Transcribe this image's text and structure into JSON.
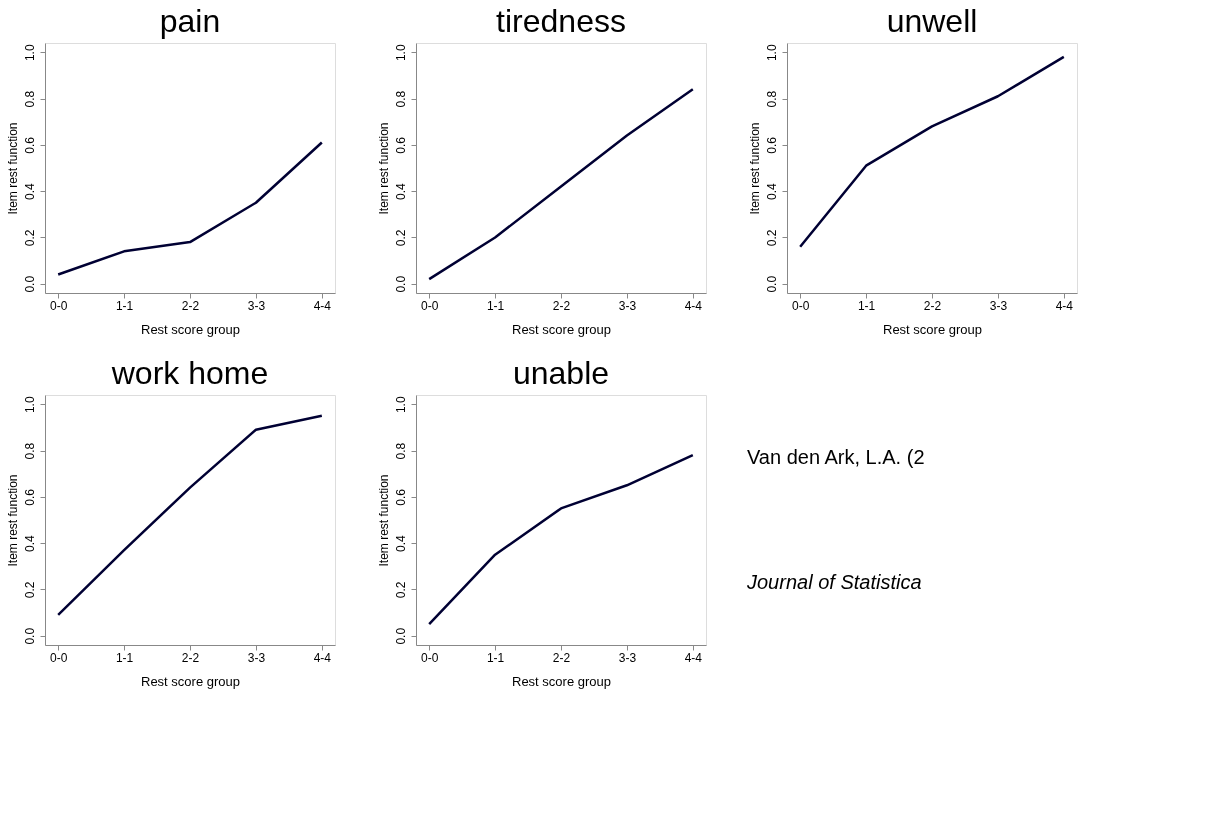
{
  "chart_data": [
    {
      "type": "line",
      "title": "pain",
      "xlabel": "Rest score group",
      "ylabel": "Item rest function",
      "categories": [
        "0-0",
        "1-1",
        "2-2",
        "3-3",
        "4-4"
      ],
      "series": [
        {
          "color": "#000033",
          "values": [
            0.04,
            0.14,
            0.18,
            0.35,
            0.61
          ]
        }
      ],
      "ylim": [
        -0.04,
        1.04
      ],
      "yticks": [
        {
          "value": 0,
          "label": "0.0"
        },
        {
          "value": 0.2,
          "label": "0.2"
        },
        {
          "value": 0.4,
          "label": "0.4"
        },
        {
          "value": 0.6,
          "label": "0.6"
        },
        {
          "value": 0.8,
          "label": "0.8"
        },
        {
          "value": 1,
          "label": "1.0"
        }
      ],
      "grid": false,
      "marker": "none",
      "line_style": "solid"
    },
    {
      "type": "line",
      "title": "tiredness",
      "xlabel": "Rest score group",
      "ylabel": "Item rest function",
      "categories": [
        "0-0",
        "1-1",
        "2-2",
        "3-3",
        "4-4"
      ],
      "series": [
        {
          "color": "#000033",
          "values": [
            0.02,
            0.2,
            0.42,
            0.64,
            0.84
          ]
        }
      ],
      "ylim": [
        -0.04,
        1.04
      ],
      "yticks": [
        {
          "value": 0,
          "label": "0.0"
        },
        {
          "value": 0.2,
          "label": "0.2"
        },
        {
          "value": 0.4,
          "label": "0.4"
        },
        {
          "value": 0.6,
          "label": "0.6"
        },
        {
          "value": 0.8,
          "label": "0.8"
        },
        {
          "value": 1,
          "label": "1.0"
        }
      ],
      "grid": false,
      "marker": "none",
      "line_style": "solid"
    },
    {
      "type": "line",
      "title": "unwell",
      "xlabel": "Rest score group",
      "ylabel": "Item rest function",
      "categories": [
        "0-0",
        "1-1",
        "2-2",
        "3-3",
        "4-4"
      ],
      "series": [
        {
          "color": "#000033",
          "values": [
            0.16,
            0.51,
            0.68,
            0.81,
            0.98
          ]
        }
      ],
      "ylim": [
        -0.04,
        1.04
      ],
      "yticks": [
        {
          "value": 0,
          "label": "0.0"
        },
        {
          "value": 0.2,
          "label": "0.2"
        },
        {
          "value": 0.4,
          "label": "0.4"
        },
        {
          "value": 0.6,
          "label": "0.6"
        },
        {
          "value": 0.8,
          "label": "0.8"
        },
        {
          "value": 1,
          "label": "1.0"
        }
      ],
      "grid": false,
      "marker": "none",
      "line_style": "solid"
    },
    {
      "type": "line",
      "title": "work home",
      "xlabel": "Rest score group",
      "ylabel": "Item rest function",
      "categories": [
        "0-0",
        "1-1",
        "2-2",
        "3-3",
        "4-4"
      ],
      "series": [
        {
          "color": "#000033",
          "values": [
            0.09,
            0.37,
            0.64,
            0.89,
            0.95
          ]
        }
      ],
      "ylim": [
        -0.04,
        1.04
      ],
      "yticks": [
        {
          "value": 0,
          "label": "0.0"
        },
        {
          "value": 0.2,
          "label": "0.2"
        },
        {
          "value": 0.4,
          "label": "0.4"
        },
        {
          "value": 0.6,
          "label": "0.6"
        },
        {
          "value": 0.8,
          "label": "0.8"
        },
        {
          "value": 1,
          "label": "1.0"
        }
      ],
      "grid": false,
      "marker": "none",
      "line_style": "solid"
    },
    {
      "type": "line",
      "title": "unable",
      "xlabel": "Rest score group",
      "ylabel": "Item rest function",
      "categories": [
        "0-0",
        "1-1",
        "2-2",
        "3-3",
        "4-4"
      ],
      "series": [
        {
          "color": "#000033",
          "values": [
            0.05,
            0.35,
            0.55,
            0.65,
            0.78
          ]
        }
      ],
      "ylim": [
        -0.04,
        1.04
      ],
      "yticks": [
        {
          "value": 0,
          "label": "0.0"
        },
        {
          "value": 0.2,
          "label": "0.2"
        },
        {
          "value": 0.4,
          "label": "0.4"
        },
        {
          "value": 0.6,
          "label": "0.6"
        },
        {
          "value": 0.8,
          "label": "0.8"
        },
        {
          "value": 1,
          "label": "1.0"
        }
      ],
      "grid": false,
      "marker": "none",
      "line_style": "solid"
    },
    {
      "type": "other",
      "annotations": [
        "Van den Ark, L.A. (2",
        "Journal of Statistica"
      ]
    }
  ]
}
